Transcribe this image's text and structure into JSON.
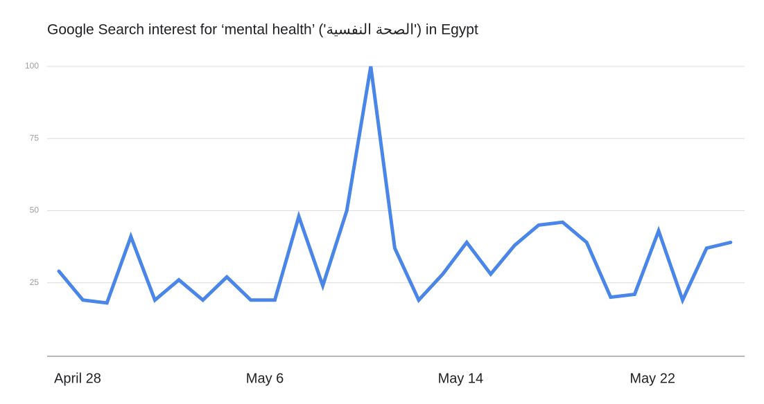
{
  "chart_data": {
    "type": "line",
    "title": "Google Search interest for ‘mental health’ ('الصحة النفسية') in Egypt",
    "categories": [
      "April 28",
      null,
      null,
      null,
      null,
      null,
      null,
      null,
      "May 6",
      null,
      null,
      null,
      null,
      null,
      null,
      null,
      "May 14",
      null,
      null,
      null,
      null,
      null,
      null,
      null,
      "May 22",
      null,
      null,
      null,
      null
    ],
    "series": [
      {
        "name": "mental health",
        "color": "#4a86e8",
        "values": [
          29,
          19,
          18,
          41,
          19,
          26,
          19,
          27,
          19,
          19,
          48,
          24,
          50,
          100,
          37,
          19,
          28,
          39,
          28,
          38,
          45,
          46,
          39,
          20,
          21,
          43,
          19,
          37,
          39
        ]
      }
    ],
    "ylim": [
      0,
      100
    ],
    "yticks": [
      25,
      50,
      75,
      100
    ],
    "grid": true,
    "legend": false
  }
}
